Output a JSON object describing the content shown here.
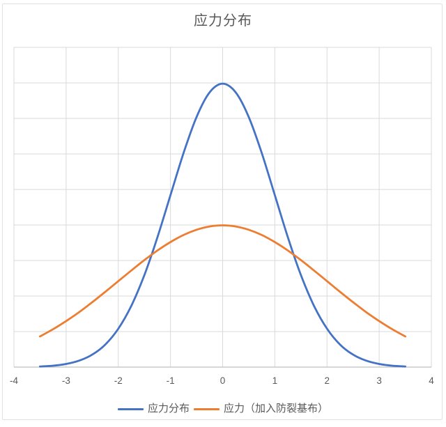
{
  "title": "应力分布",
  "colors": {
    "series1": "#4472C4",
    "series2": "#ED7D31",
    "gridline": "#D9D9D9",
    "axis_line": "#BFBFBF",
    "text": "#595959",
    "frame": "#E2E2E2"
  },
  "chart_data": {
    "type": "line",
    "title": "应力分布",
    "xlabel": "",
    "ylabel": "",
    "xlim": [
      -4,
      4
    ],
    "ylim": [
      0,
      0.45
    ],
    "x_tick_labels": [
      "-4",
      "-3",
      "-2",
      "-1",
      "0",
      "1",
      "2",
      "3",
      "4"
    ],
    "y_tick_step": 0.05,
    "y_tick_labels_visible": false,
    "grid": true,
    "legend_position": "bottom",
    "x": [
      -3.5,
      -3.25,
      -3,
      -2.75,
      -2.5,
      -2.25,
      -2,
      -1.75,
      -1.5,
      -1.25,
      -1,
      -0.75,
      -0.5,
      -0.25,
      0,
      0.25,
      0.5,
      0.75,
      1,
      1.25,
      1.5,
      1.75,
      2,
      2.25,
      2.5,
      2.75,
      3,
      3.25,
      3.5
    ],
    "series": [
      {
        "name": "应力分布",
        "color": "#4472C4",
        "values": [
          0.0009,
          0.002,
          0.0044,
          0.0091,
          0.0175,
          0.0317,
          0.054,
          0.0863,
          0.1295,
          0.1826,
          0.242,
          0.3011,
          0.3521,
          0.3867,
          0.3989,
          0.3867,
          0.3521,
          0.3011,
          0.242,
          0.1826,
          0.1295,
          0.0863,
          0.054,
          0.0317,
          0.0175,
          0.0091,
          0.0044,
          0.002,
          0.0009
        ]
      },
      {
        "name": "应力（加入防裂基布）",
        "color": "#ED7D31",
        "values": [
          0.0431,
          0.0533,
          0.0648,
          0.0774,
          0.0913,
          0.1059,
          0.121,
          0.136,
          0.1506,
          0.1641,
          0.176,
          0.1859,
          0.1933,
          0.1979,
          0.1995,
          0.1979,
          0.1933,
          0.1859,
          0.176,
          0.1641,
          0.1506,
          0.136,
          0.121,
          0.1059,
          0.0913,
          0.0774,
          0.0648,
          0.0533,
          0.0431
        ]
      }
    ]
  }
}
